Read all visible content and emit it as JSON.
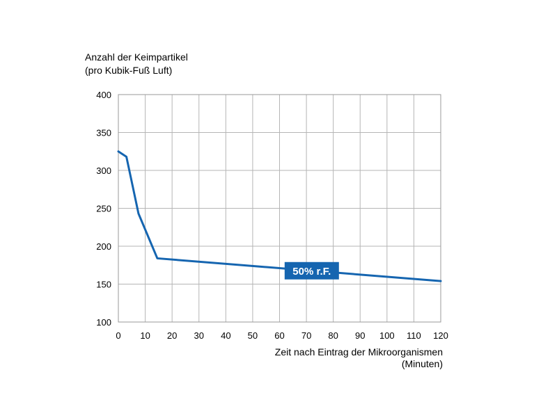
{
  "chart_data": {
    "type": "line",
    "ylabel": [
      "Anzahl der Keimpartikel",
      "(pro Kubik-Fuß Luft)"
    ],
    "xlabel": [
      "Zeit nach Eintrag der Mikroorganismen",
      "(Minuten)"
    ],
    "xlim": [
      0,
      120
    ],
    "ylim": [
      100,
      400
    ],
    "x_ticks": [
      0,
      10,
      20,
      30,
      40,
      50,
      60,
      70,
      80,
      90,
      100,
      110,
      120
    ],
    "y_ticks": [
      100,
      150,
      200,
      250,
      300,
      350,
      400
    ],
    "grid": true,
    "series": [
      {
        "name": "50% r.F.",
        "color": "#1565b0",
        "x": [
          0,
          3,
          7.5,
          14.5,
          120
        ],
        "y": [
          325,
          318,
          243,
          184,
          154
        ]
      }
    ]
  }
}
